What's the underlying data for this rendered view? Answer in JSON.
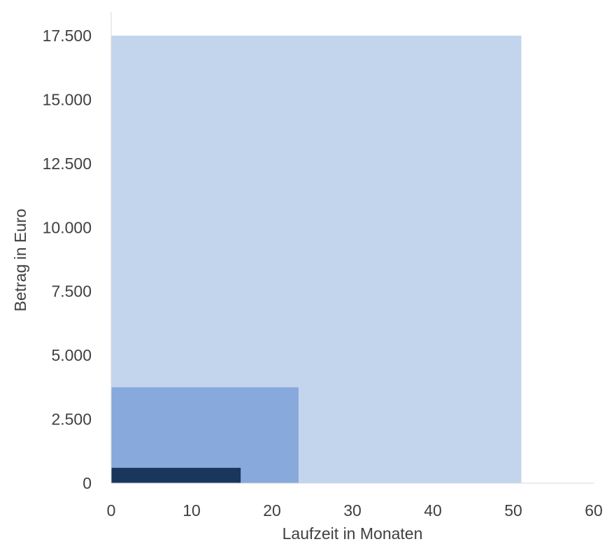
{
  "chart_data": {
    "type": "area",
    "title": "",
    "xlabel": "Laufzeit in Monaten",
    "ylabel": "Betrag in Euro",
    "xlim": [
      0,
      60
    ],
    "ylim": [
      0,
      17500
    ],
    "x_ticks": [
      0,
      10,
      20,
      30,
      40,
      50,
      60
    ],
    "x_tick_labels": [
      "0",
      "10",
      "20",
      "30",
      "40",
      "50",
      "60"
    ],
    "y_ticks": [
      0,
      2500,
      5000,
      7500,
      10000,
      12500,
      15000,
      17500
    ],
    "y_tick_labels": [
      "0",
      "2.500",
      "5.000",
      "7.500",
      "10.000",
      "12.500",
      "15.000",
      "17.500"
    ],
    "grid": false,
    "legend": "none",
    "series": [
      {
        "x_start": 0,
        "x_end": 51,
        "value": 17500,
        "color": "#c3d5ed"
      },
      {
        "x_start": 0,
        "x_end": 23.3,
        "value": 3750,
        "color": "#87a9dc"
      },
      {
        "x_start": 0,
        "x_end": 16.1,
        "value": 600,
        "color": "#1b365d"
      }
    ]
  }
}
